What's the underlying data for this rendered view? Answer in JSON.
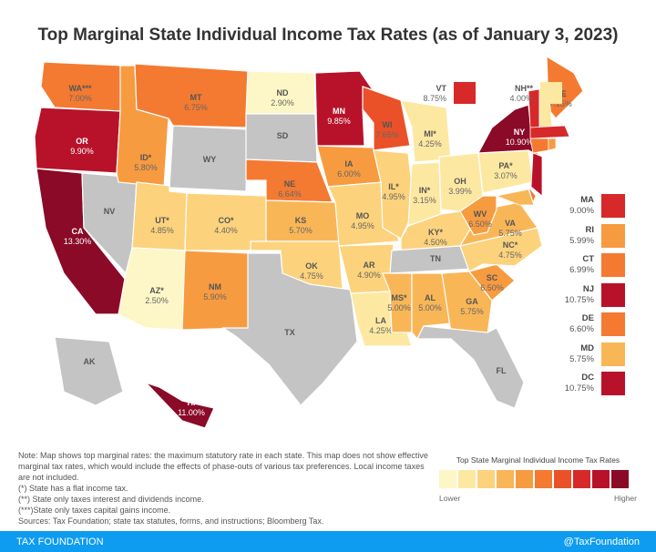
{
  "title": "Top Marginal State Individual Income Tax Rates (as of January 3, 2023)",
  "colors": {
    "none": "#c4c4c4",
    "scale": [
      "#fdf6c6",
      "#fde8a2",
      "#fcd27c",
      "#f9b657",
      "#f79b40",
      "#f47a31",
      "#ea5128",
      "#d7282a",
      "#b8122b",
      "#8a0a27"
    ]
  },
  "states": [
    {
      "abbr": "WA***",
      "rate": "7.00%",
      "v": 7.0
    },
    {
      "abbr": "OR",
      "rate": "9.90%",
      "v": 9.9
    },
    {
      "abbr": "CA",
      "rate": "13.30%",
      "v": 13.3
    },
    {
      "abbr": "NV",
      "rate": "",
      "v": null
    },
    {
      "abbr": "ID*",
      "rate": "5.80%",
      "v": 5.8
    },
    {
      "abbr": "MT",
      "rate": "6.75%",
      "v": 6.75
    },
    {
      "abbr": "WY",
      "rate": "",
      "v": null
    },
    {
      "abbr": "UT*",
      "rate": "4.85%",
      "v": 4.85
    },
    {
      "abbr": "CO*",
      "rate": "4.40%",
      "v": 4.4
    },
    {
      "abbr": "AZ*",
      "rate": "2.50%",
      "v": 2.5
    },
    {
      "abbr": "NM",
      "rate": "5.90%",
      "v": 5.9
    },
    {
      "abbr": "ND",
      "rate": "2.90%",
      "v": 2.9
    },
    {
      "abbr": "SD",
      "rate": "",
      "v": null
    },
    {
      "abbr": "NE",
      "rate": "6.64%",
      "v": 6.64
    },
    {
      "abbr": "KS",
      "rate": "5.70%",
      "v": 5.7
    },
    {
      "abbr": "OK",
      "rate": "4.75%",
      "v": 4.75
    },
    {
      "abbr": "TX",
      "rate": "",
      "v": null
    },
    {
      "abbr": "MN",
      "rate": "9.85%",
      "v": 9.85
    },
    {
      "abbr": "IA",
      "rate": "6.00%",
      "v": 6.0
    },
    {
      "abbr": "MO",
      "rate": "4.95%",
      "v": 4.95
    },
    {
      "abbr": "AR",
      "rate": "4.90%",
      "v": 4.9
    },
    {
      "abbr": "LA",
      "rate": "4.25%",
      "v": 4.25
    },
    {
      "abbr": "WI",
      "rate": "7.65%",
      "v": 7.65
    },
    {
      "abbr": "IL*",
      "rate": "4.95%",
      "v": 4.95
    },
    {
      "abbr": "MI*",
      "rate": "4.25%",
      "v": 4.25
    },
    {
      "abbr": "IN*",
      "rate": "3.15%",
      "v": 3.15
    },
    {
      "abbr": "OH",
      "rate": "3.99%",
      "v": 3.99
    },
    {
      "abbr": "KY*",
      "rate": "4.50%",
      "v": 4.5
    },
    {
      "abbr": "TN",
      "rate": "",
      "v": null
    },
    {
      "abbr": "MS*",
      "rate": "5.00%",
      "v": 5.0
    },
    {
      "abbr": "AL",
      "rate": "5.00%",
      "v": 5.0
    },
    {
      "abbr": "GA",
      "rate": "5.75%",
      "v": 5.75
    },
    {
      "abbr": "FL",
      "rate": "",
      "v": null
    },
    {
      "abbr": "SC",
      "rate": "6.50%",
      "v": 6.5
    },
    {
      "abbr": "NC*",
      "rate": "4.75%",
      "v": 4.75
    },
    {
      "abbr": "VA",
      "rate": "5.75%",
      "v": 5.75
    },
    {
      "abbr": "WV",
      "rate": "6.50%",
      "v": 6.5
    },
    {
      "abbr": "PA*",
      "rate": "3.07%",
      "v": 3.07
    },
    {
      "abbr": "NY",
      "rate": "10.90%",
      "v": 10.9
    },
    {
      "abbr": "ME",
      "rate": "7.15%",
      "v": 7.15
    },
    {
      "abbr": "AK",
      "rate": "",
      "v": null
    },
    {
      "abbr": "HI",
      "rate": "11.00%",
      "v": 11.0
    }
  ],
  "callouts_top": [
    {
      "abbr": "VT",
      "rate": "8.75%",
      "v": 8.75
    },
    {
      "abbr": "NH**",
      "rate": "4.00%",
      "v": 4.0
    }
  ],
  "callouts_side": [
    {
      "abbr": "MA",
      "rate": "9.00%",
      "v": 9.0
    },
    {
      "abbr": "RI",
      "rate": "5.99%",
      "v": 5.99
    },
    {
      "abbr": "CT",
      "rate": "6.99%",
      "v": 6.99
    },
    {
      "abbr": "NJ",
      "rate": "10.75%",
      "v": 10.75
    },
    {
      "abbr": "DE",
      "rate": "6.60%",
      "v": 6.6
    },
    {
      "abbr": "MD",
      "rate": "5.75%",
      "v": 5.75
    },
    {
      "abbr": "DC",
      "rate": "10.75%",
      "v": 10.75
    }
  ],
  "note": [
    "Note: Map shows top marginal rates: the maximum statutory rate in each state. This map does not show effective marginal tax rates, which would include the effects of phase-outs of various tax preferences. Local income taxes are not included.",
    "(*) State has a flat income tax.",
    "(**) State only taxes interest and dividends income.",
    "(***)State only taxes capital gains income.",
    "Sources: Tax Foundation; state tax statutes, forms, and instructions; Bloomberg Tax."
  ],
  "legend": {
    "title": "Top State Marginal Individual Income Tax Rates",
    "low": "Lower",
    "high": "Higher"
  },
  "footer": {
    "left": "TAX FOUNDATION",
    "right": "@TaxFoundation"
  }
}
